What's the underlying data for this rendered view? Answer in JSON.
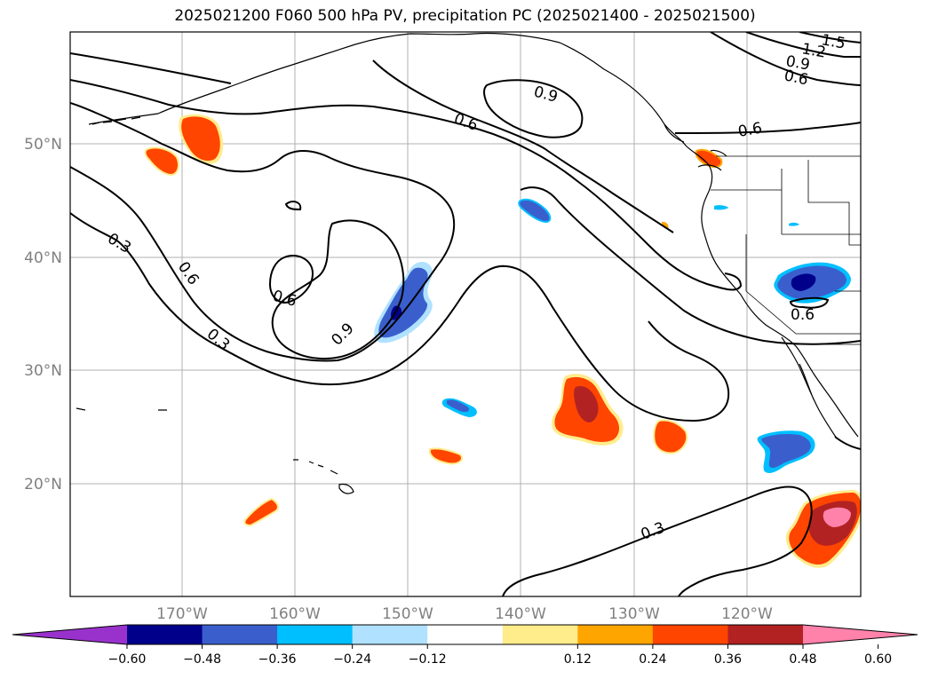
{
  "title": "2025021200 F060 500 hPa PV, precipitation PC (2025021400 - 2025021500)",
  "map": {
    "lon_labels": [
      "170°W",
      "160°W",
      "150°W",
      "140°W",
      "130°W",
      "120°W"
    ],
    "lat_labels": [
      "50°N",
      "40°N",
      "30°N",
      "20°N"
    ],
    "gridlines": true
  },
  "contour_labels": [
    {
      "text": "0.9"
    },
    {
      "text": "0.6"
    },
    {
      "text": "0.6"
    },
    {
      "text": "0.3"
    },
    {
      "text": "0.6"
    },
    {
      "text": "0.3"
    },
    {
      "text": "0.6"
    },
    {
      "text": "0.9"
    },
    {
      "text": "0.3"
    },
    {
      "text": "0.6"
    },
    {
      "text": "0.6"
    },
    {
      "text": "0.9"
    },
    {
      "text": "1.2"
    },
    {
      "text": "1.5"
    }
  ],
  "colorbar": {
    "ticks": [
      "−0.60",
      "−0.48",
      "−0.36",
      "−0.24",
      "−0.12",
      "0.12",
      "0.24",
      "0.36",
      "0.48",
      "0.60"
    ],
    "colors": [
      "#9932cc",
      "#00008b",
      "#3a5fcd",
      "#00bfff",
      "#b0e2ff",
      "#ffffff",
      "#ffec8b",
      "#ffa500",
      "#ff4500",
      "#b22222",
      "#ff82ab"
    ]
  }
}
